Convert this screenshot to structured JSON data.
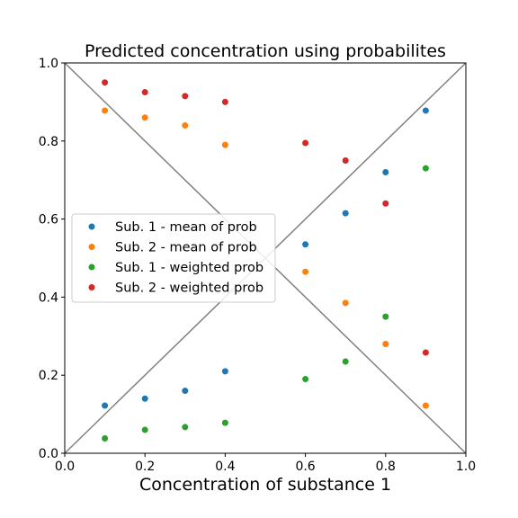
{
  "chart_data": {
    "type": "scatter",
    "title": "Predicted concentration using probabilites",
    "xlabel": "Concentration of substance 1",
    "ylabel": "",
    "xlim": [
      0.0,
      1.0
    ],
    "ylim": [
      0.0,
      1.0
    ],
    "xticks": [
      "0.0",
      "0.2",
      "0.4",
      "0.6",
      "0.8",
      "1.0"
    ],
    "yticks": [
      "0.0",
      "0.2",
      "0.4",
      "0.6",
      "0.8",
      "1.0"
    ],
    "grid": false,
    "legend_position": "center-left",
    "reference_lines": [
      {
        "from": [
          0,
          0
        ],
        "to": [
          1,
          1
        ],
        "color": "#808080"
      },
      {
        "from": [
          0,
          1
        ],
        "to": [
          1,
          0
        ],
        "color": "#808080"
      }
    ],
    "series": [
      {
        "name": "Sub. 1 - mean of prob",
        "color": "#1f77b4",
        "x": [
          0.1,
          0.2,
          0.3,
          0.4,
          0.6,
          0.7,
          0.8,
          0.9
        ],
        "y": [
          0.122,
          0.14,
          0.16,
          0.21,
          0.535,
          0.615,
          0.72,
          0.878
        ]
      },
      {
        "name": "Sub. 2 - mean of prob",
        "color": "#ff7f0e",
        "x": [
          0.1,
          0.2,
          0.3,
          0.4,
          0.6,
          0.7,
          0.8,
          0.9
        ],
        "y": [
          0.878,
          0.86,
          0.84,
          0.79,
          0.465,
          0.385,
          0.28,
          0.122
        ]
      },
      {
        "name": "Sub. 1 - weighted prob",
        "color": "#2ca02c",
        "x": [
          0.1,
          0.2,
          0.3,
          0.4,
          0.6,
          0.7,
          0.8,
          0.9
        ],
        "y": [
          0.038,
          0.06,
          0.067,
          0.078,
          0.19,
          0.235,
          0.35,
          0.73
        ]
      },
      {
        "name": "Sub. 2 - weighted prob",
        "color": "#d62728",
        "x": [
          0.1,
          0.2,
          0.3,
          0.4,
          0.6,
          0.7,
          0.8,
          0.9
        ],
        "y": [
          0.95,
          0.925,
          0.915,
          0.9,
          0.795,
          0.75,
          0.64,
          0.258
        ]
      }
    ]
  }
}
